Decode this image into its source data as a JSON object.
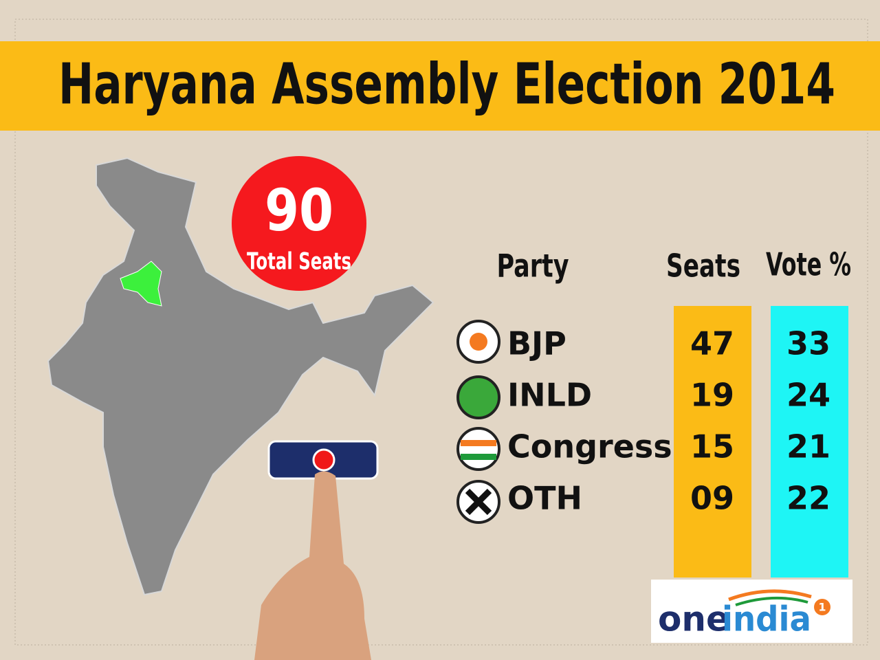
{
  "header": {
    "title": "Haryana Assembly Election 2014"
  },
  "badge": {
    "value": "90",
    "label": "Total Seats"
  },
  "table": {
    "columns": [
      "Party",
      "Seats",
      "Vote %"
    ],
    "rows": [
      [
        "BJP",
        "47",
        "33"
      ],
      [
        "INLD",
        "19",
        "24"
      ],
      [
        "Congress",
        "15",
        "21"
      ],
      [
        "OTH",
        "09",
        "22"
      ]
    ]
  },
  "logo": {
    "parts": [
      "one",
      "india"
    ],
    "mark": "1"
  }
}
